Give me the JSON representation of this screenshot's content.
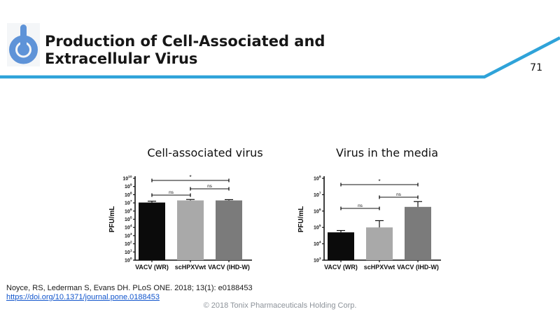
{
  "header": {
    "title": "Production of Cell-Associated and Extracellular Virus",
    "page_number": "71",
    "accent_color": "#2fa3d9",
    "logo_color": "#5e93d8",
    "logo_icon": "power-button-icon"
  },
  "chart_data": [
    {
      "type": "bar",
      "title": "Cell-associated virus",
      "ylabel": "PFU/mL",
      "xlabel": "",
      "yscale": "log",
      "ylim_exp": [
        0,
        10
      ],
      "grid": false,
      "legend": "none",
      "categories": [
        "VACV (WR)",
        "scHPXVwt",
        "VACV (IHD-W)"
      ],
      "values": [
        11000000,
        20000000,
        20000000
      ],
      "errors_high": [
        16000000,
        26000000,
        25000000
      ],
      "bar_colors": [
        "#0b0b0b",
        "#a9a9a9",
        "#7b7b7b"
      ],
      "significance": [
        {
          "from": 0,
          "to": 2,
          "label": "*",
          "y": 20
        },
        {
          "from": 1,
          "to": 2,
          "label": "ns",
          "y": 32
        },
        {
          "from": 0,
          "to": 1,
          "label": "ns",
          "y": 41
        }
      ]
    },
    {
      "type": "bar",
      "title": "Virus in the media",
      "ylabel": "PFU/mL",
      "xlabel": "",
      "yscale": "log",
      "ylim_exp": [
        3,
        8
      ],
      "grid": false,
      "legend": "none",
      "categories": [
        "VACV (WR)",
        "scHPXVwt",
        "VACV (IHD-W)"
      ],
      "values": [
        50000,
        100000,
        1800000
      ],
      "errors_high": [
        65000,
        260000,
        3800000
      ],
      "bar_colors": [
        "#0b0b0b",
        "#a9a9a9",
        "#7b7b7b"
      ],
      "significance": [
        {
          "from": 0,
          "to": 2,
          "label": "*",
          "y": 26
        },
        {
          "from": 1,
          "to": 2,
          "label": "ns",
          "y": 44
        },
        {
          "from": 0,
          "to": 1,
          "label": "ns",
          "y": 60
        }
      ]
    }
  ],
  "footer": {
    "citation": "Noyce, RS, Lederman S, Evans DH. PLoS ONE. 2018; 13(1): e0188453",
    "doi_link": "https://doi.org/10.1371/journal.pone.0188453",
    "copyright": "© 2018 Tonix Pharmaceuticals Holding Corp."
  }
}
